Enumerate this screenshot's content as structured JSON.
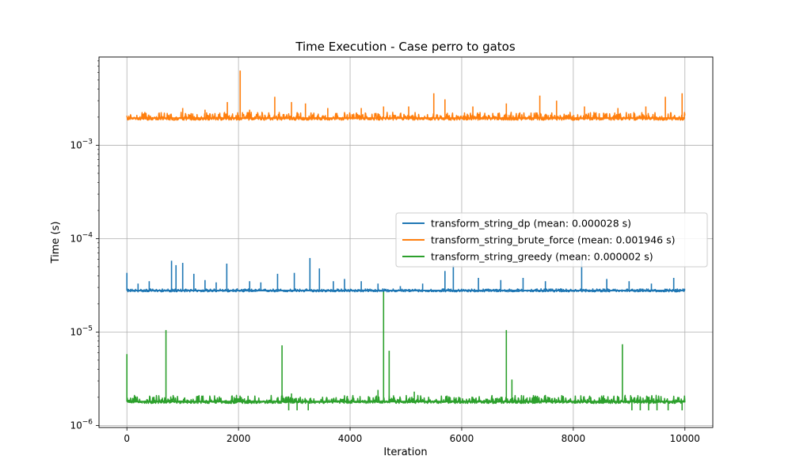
{
  "chart_data": {
    "type": "line",
    "title": "Time Execution - Case perro to gatos",
    "xlabel": "Iteration",
    "ylabel": "Time (s)",
    "xlim": [
      -500,
      10500
    ],
    "ylim": [
      9.5e-07,
      0.0088
    ],
    "yscale": "log",
    "grid": true,
    "legend_position": "center-right",
    "x_ticks": [
      {
        "value": 0,
        "label": "0"
      },
      {
        "value": 2000,
        "label": "2000"
      },
      {
        "value": 4000,
        "label": "4000"
      },
      {
        "value": 6000,
        "label": "6000"
      },
      {
        "value": 8000,
        "label": "8000"
      },
      {
        "value": 10000,
        "label": "10000"
      }
    ],
    "y_ticks": [
      {
        "value": 1e-06,
        "base": "10",
        "exp": "−6"
      },
      {
        "value": 1e-05,
        "base": "10",
        "exp": "−5"
      },
      {
        "value": 0.0001,
        "base": "10",
        "exp": "−4"
      },
      {
        "value": 0.001,
        "base": "10",
        "exp": "−3"
      }
    ],
    "series": [
      {
        "name": "transform_string_dp (mean: 0.000028 s)",
        "color": "#1f77b4",
        "baseline": 2.78e-05,
        "band_low": 2.67e-05,
        "band_high": 2.9e-05,
        "x_range": [
          0,
          10000
        ],
        "spikes": [
          {
            "x": 0,
            "y": 4.3e-05
          },
          {
            "x": 200,
            "y": 3.3e-05
          },
          {
            "x": 400,
            "y": 3.5e-05
          },
          {
            "x": 800,
            "y": 5.8e-05
          },
          {
            "x": 880,
            "y": 5.2e-05
          },
          {
            "x": 1000,
            "y": 5.5e-05
          },
          {
            "x": 1200,
            "y": 4.2e-05
          },
          {
            "x": 1400,
            "y": 3.6e-05
          },
          {
            "x": 1600,
            "y": 3.4e-05
          },
          {
            "x": 1790,
            "y": 5.4e-05
          },
          {
            "x": 2200,
            "y": 3.5e-05
          },
          {
            "x": 2400,
            "y": 3.4e-05
          },
          {
            "x": 2700,
            "y": 4.2e-05
          },
          {
            "x": 3000,
            "y": 4.3e-05
          },
          {
            "x": 3280,
            "y": 6.2e-05
          },
          {
            "x": 3450,
            "y": 4.8e-05
          },
          {
            "x": 3700,
            "y": 3.5e-05
          },
          {
            "x": 3900,
            "y": 3.7e-05
          },
          {
            "x": 4200,
            "y": 3.5e-05
          },
          {
            "x": 4500,
            "y": 3.3e-05
          },
          {
            "x": 4900,
            "y": 3.1e-05
          },
          {
            "x": 5300,
            "y": 3.3e-05
          },
          {
            "x": 5700,
            "y": 4.5e-05
          },
          {
            "x": 5850,
            "y": 5.2e-05
          },
          {
            "x": 6300,
            "y": 3.8e-05
          },
          {
            "x": 6700,
            "y": 3.6e-05
          },
          {
            "x": 7100,
            "y": 3.8e-05
          },
          {
            "x": 7500,
            "y": 3.5e-05
          },
          {
            "x": 8150,
            "y": 5.8e-05
          },
          {
            "x": 8600,
            "y": 3.7e-05
          },
          {
            "x": 9000,
            "y": 3.5e-05
          },
          {
            "x": 9400,
            "y": 3.3e-05
          },
          {
            "x": 9800,
            "y": 3.8e-05
          }
        ]
      },
      {
        "name": "transform_string_brute_force (mean: 0.001946 s)",
        "color": "#ff7f0e",
        "baseline": 0.00195,
        "band_low": 0.00183,
        "band_high": 0.00225,
        "x_range": [
          0,
          10000
        ],
        "spikes": [
          {
            "x": 1000,
            "y": 0.0025
          },
          {
            "x": 1400,
            "y": 0.0024
          },
          {
            "x": 1800,
            "y": 0.0029
          },
          {
            "x": 2030,
            "y": 0.0063
          },
          {
            "x": 2200,
            "y": 0.0024
          },
          {
            "x": 2650,
            "y": 0.0033
          },
          {
            "x": 2950,
            "y": 0.0029
          },
          {
            "x": 3200,
            "y": 0.0028
          },
          {
            "x": 3600,
            "y": 0.0025
          },
          {
            "x": 4200,
            "y": 0.0025
          },
          {
            "x": 4600,
            "y": 0.0026
          },
          {
            "x": 5050,
            "y": 0.0026
          },
          {
            "x": 5500,
            "y": 0.0036
          },
          {
            "x": 5700,
            "y": 0.0031
          },
          {
            "x": 6200,
            "y": 0.0026
          },
          {
            "x": 6800,
            "y": 0.0028
          },
          {
            "x": 7400,
            "y": 0.0034
          },
          {
            "x": 7700,
            "y": 0.003
          },
          {
            "x": 8200,
            "y": 0.0026
          },
          {
            "x": 8800,
            "y": 0.0025
          },
          {
            "x": 9300,
            "y": 0.0026
          },
          {
            "x": 9650,
            "y": 0.0033
          },
          {
            "x": 9950,
            "y": 0.0036
          }
        ]
      },
      {
        "name": "transform_string_greedy (mean: 0.000002 s)",
        "color": "#2ca02c",
        "baseline": 1.8e-06,
        "band_low": 1.7e-06,
        "band_high": 2.1e-06,
        "x_range": [
          0,
          10000
        ],
        "spikes": [
          {
            "x": 0,
            "y": 5.8e-06
          },
          {
            "x": 700,
            "y": 1.05e-05
          },
          {
            "x": 2780,
            "y": 7.2e-06
          },
          {
            "x": 4600,
            "y": 2.7e-05
          },
          {
            "x": 4700,
            "y": 6.3e-06
          },
          {
            "x": 5150,
            "y": 2.3e-06
          },
          {
            "x": 6800,
            "y": 1.05e-05
          },
          {
            "x": 6900,
            "y": 3.1e-06
          },
          {
            "x": 8880,
            "y": 7.4e-06
          },
          {
            "x": 4500,
            "y": 2.4e-06
          },
          {
            "x": 2950,
            "y": 2.2e-06
          }
        ],
        "dips": [
          {
            "x": 2900,
            "y": 1.45e-06
          },
          {
            "x": 3050,
            "y": 1.45e-06
          },
          {
            "x": 3250,
            "y": 1.45e-06
          },
          {
            "x": 9050,
            "y": 1.45e-06
          },
          {
            "x": 9200,
            "y": 1.45e-06
          },
          {
            "x": 9350,
            "y": 1.45e-06
          },
          {
            "x": 9500,
            "y": 1.45e-06
          },
          {
            "x": 9700,
            "y": 1.45e-06
          },
          {
            "x": 9950,
            "y": 1.45e-06
          }
        ]
      }
    ]
  }
}
